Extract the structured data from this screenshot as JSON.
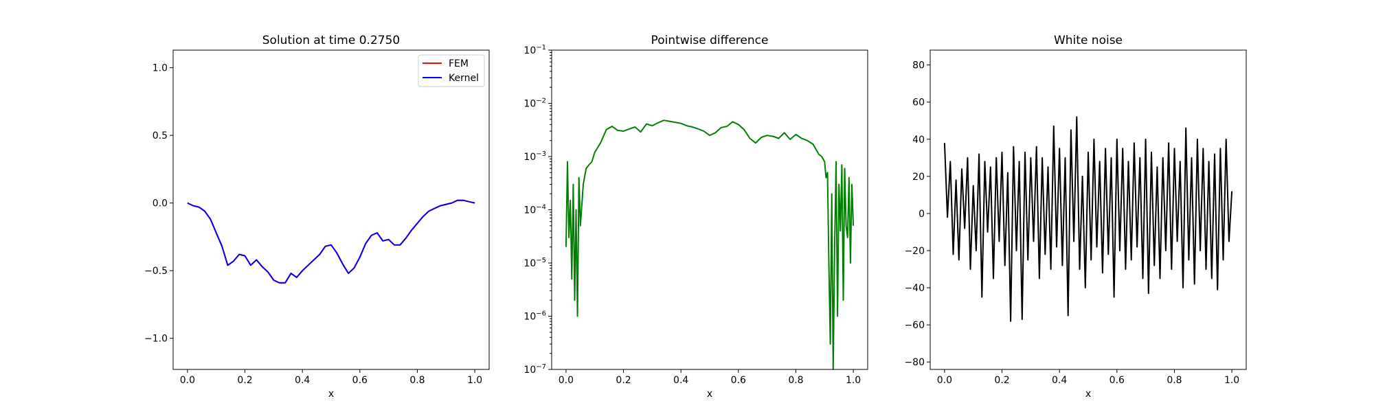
{
  "chart_data": [
    {
      "type": "line",
      "title": "Solution at time 0.2750",
      "xlabel": "x",
      "ylabel": "",
      "xlim": [
        -0.05,
        1.05
      ],
      "ylim": [
        -1.23,
        1.13
      ],
      "xticks": [
        0.0,
        0.2,
        0.4,
        0.6,
        0.8,
        1.0
      ],
      "xtick_labels": [
        "0.0",
        "0.2",
        "0.4",
        "0.6",
        "0.8",
        "1.0"
      ],
      "yticks": [
        -1.0,
        -0.5,
        0.0,
        0.5,
        1.0
      ],
      "ytick_labels": [
        "−1.0",
        "−0.5",
        "0.0",
        "0.5",
        "1.0"
      ],
      "legend": "top-right",
      "series": [
        {
          "name": "FEM",
          "color": "#ff0000",
          "x": [
            0.0,
            0.02,
            0.04,
            0.06,
            0.08,
            0.1,
            0.12,
            0.14,
            0.16,
            0.18,
            0.2,
            0.22,
            0.24,
            0.26,
            0.28,
            0.3,
            0.32,
            0.34,
            0.36,
            0.38,
            0.4,
            0.42,
            0.44,
            0.46,
            0.48,
            0.5,
            0.52,
            0.54,
            0.56,
            0.58,
            0.6,
            0.62,
            0.64,
            0.66,
            0.68,
            0.7,
            0.72,
            0.74,
            0.76,
            0.78,
            0.8,
            0.82,
            0.84,
            0.86,
            0.88,
            0.9,
            0.92,
            0.94,
            0.96,
            0.98,
            1.0
          ],
          "y": [
            0.0,
            -0.02,
            -0.03,
            -0.06,
            -0.12,
            -0.22,
            -0.32,
            -0.46,
            -0.43,
            -0.38,
            -0.39,
            -0.46,
            -0.42,
            -0.47,
            -0.51,
            -0.57,
            -0.59,
            -0.59,
            -0.52,
            -0.55,
            -0.5,
            -0.46,
            -0.42,
            -0.38,
            -0.32,
            -0.31,
            -0.37,
            -0.45,
            -0.52,
            -0.48,
            -0.4,
            -0.3,
            -0.24,
            -0.22,
            -0.28,
            -0.27,
            -0.31,
            -0.31,
            -0.26,
            -0.2,
            -0.15,
            -0.1,
            -0.06,
            -0.04,
            -0.02,
            -0.01,
            0.0,
            0.02,
            0.02,
            0.01,
            0.0
          ]
        },
        {
          "name": "Kernel",
          "color": "#0000ff",
          "x": [
            0.0,
            0.02,
            0.04,
            0.06,
            0.08,
            0.1,
            0.12,
            0.14,
            0.16,
            0.18,
            0.2,
            0.22,
            0.24,
            0.26,
            0.28,
            0.3,
            0.32,
            0.34,
            0.36,
            0.38,
            0.4,
            0.42,
            0.44,
            0.46,
            0.48,
            0.5,
            0.52,
            0.54,
            0.56,
            0.58,
            0.6,
            0.62,
            0.64,
            0.66,
            0.68,
            0.7,
            0.72,
            0.74,
            0.76,
            0.78,
            0.8,
            0.82,
            0.84,
            0.86,
            0.88,
            0.9,
            0.92,
            0.94,
            0.96,
            0.98,
            1.0
          ],
          "y": [
            0.0,
            -0.02,
            -0.03,
            -0.06,
            -0.12,
            -0.22,
            -0.32,
            -0.46,
            -0.43,
            -0.38,
            -0.39,
            -0.46,
            -0.42,
            -0.47,
            -0.51,
            -0.57,
            -0.59,
            -0.59,
            -0.52,
            -0.55,
            -0.5,
            -0.46,
            -0.42,
            -0.38,
            -0.32,
            -0.31,
            -0.37,
            -0.45,
            -0.52,
            -0.48,
            -0.4,
            -0.3,
            -0.24,
            -0.22,
            -0.28,
            -0.27,
            -0.31,
            -0.31,
            -0.26,
            -0.2,
            -0.15,
            -0.1,
            -0.06,
            -0.04,
            -0.02,
            -0.01,
            0.0,
            0.02,
            0.02,
            0.01,
            0.0
          ]
        }
      ]
    },
    {
      "type": "line",
      "title": "Pointwise difference",
      "xlabel": "x",
      "ylabel": "",
      "scale_y": "log",
      "xlim": [
        -0.05,
        1.05
      ],
      "ylim": [
        1e-07,
        0.1
      ],
      "xticks": [
        0.0,
        0.2,
        0.4,
        0.6,
        0.8,
        1.0
      ],
      "xtick_labels": [
        "0.0",
        "0.2",
        "0.4",
        "0.6",
        "0.8",
        "1.0"
      ],
      "yticks": [
        1e-07,
        1e-06,
        1e-05,
        0.0001,
        0.001,
        0.01,
        0.1
      ],
      "ytick_labels": [
        {
          "base": "10",
          "exp": "−7"
        },
        {
          "base": "10",
          "exp": "−6"
        },
        {
          "base": "10",
          "exp": "−5"
        },
        {
          "base": "10",
          "exp": "−4"
        },
        {
          "base": "10",
          "exp": "−3"
        },
        {
          "base": "10",
          "exp": "−2"
        },
        {
          "base": "10",
          "exp": "−1"
        }
      ],
      "series": [
        {
          "color": "#008000",
          "x": [
            0.0,
            0.005,
            0.01,
            0.015,
            0.02,
            0.025,
            0.03,
            0.035,
            0.04,
            0.045,
            0.05,
            0.06,
            0.07,
            0.08,
            0.09,
            0.1,
            0.12,
            0.14,
            0.16,
            0.18,
            0.2,
            0.22,
            0.24,
            0.26,
            0.28,
            0.3,
            0.32,
            0.34,
            0.36,
            0.38,
            0.4,
            0.42,
            0.44,
            0.46,
            0.48,
            0.5,
            0.52,
            0.54,
            0.56,
            0.58,
            0.6,
            0.62,
            0.64,
            0.66,
            0.68,
            0.7,
            0.72,
            0.74,
            0.76,
            0.78,
            0.8,
            0.82,
            0.84,
            0.86,
            0.88,
            0.89,
            0.9,
            0.905,
            0.91,
            0.915,
            0.92,
            0.925,
            0.93,
            0.935,
            0.94,
            0.945,
            0.95,
            0.955,
            0.96,
            0.965,
            0.97,
            0.975,
            0.98,
            0.985,
            0.99,
            0.995,
            1.0
          ],
          "y": [
            2e-05,
            0.0008,
            3e-05,
            0.00015,
            5e-06,
            0.0003,
            2e-06,
            0.0001,
            1e-06,
            0.0004,
            5e-05,
            0.0003,
            0.0006,
            0.0007,
            0.0008,
            0.0012,
            0.0018,
            0.0032,
            0.0037,
            0.0031,
            0.003,
            0.0033,
            0.0036,
            0.0029,
            0.0041,
            0.0038,
            0.0043,
            0.0048,
            0.0046,
            0.0044,
            0.0042,
            0.0038,
            0.0036,
            0.0033,
            0.003,
            0.0025,
            0.0028,
            0.0035,
            0.0037,
            0.0045,
            0.004,
            0.0032,
            0.0022,
            0.0018,
            0.0023,
            0.0025,
            0.0024,
            0.0022,
            0.0028,
            0.0021,
            0.0026,
            0.0022,
            0.002,
            0.0017,
            0.0011,
            0.001,
            0.0008,
            0.0004,
            0.0005,
            1e-05,
            3e-07,
            0.0002,
            1e-07,
            2e-05,
            0.0008,
            1e-06,
            0.0003,
            4e-05,
            0.0007,
            2e-06,
            0.0006,
            5e-05,
            3e-05,
            0.0004,
            1e-05,
            0.0003,
            5e-05
          ]
        }
      ]
    },
    {
      "type": "line",
      "title": "White noise",
      "xlabel": "x",
      "ylabel": "",
      "xlim": [
        -0.05,
        1.05
      ],
      "ylim": [
        -84,
        88
      ],
      "xticks": [
        0.0,
        0.2,
        0.4,
        0.6,
        0.8,
        1.0
      ],
      "xtick_labels": [
        "0.0",
        "0.2",
        "0.4",
        "0.6",
        "0.8",
        "1.0"
      ],
      "yticks": [
        -80,
        -60,
        -40,
        -20,
        0,
        20,
        40,
        60,
        80
      ],
      "ytick_labels": [
        "−80",
        "−60",
        "−40",
        "−20",
        "0",
        "20",
        "40",
        "60",
        "80"
      ],
      "series": [
        {
          "color": "#000000",
          "x": [
            0.0,
            0.01,
            0.02,
            0.03,
            0.04,
            0.05,
            0.06,
            0.07,
            0.08,
            0.09,
            0.1,
            0.11,
            0.12,
            0.13,
            0.14,
            0.15,
            0.16,
            0.17,
            0.18,
            0.19,
            0.2,
            0.21,
            0.22,
            0.23,
            0.24,
            0.25,
            0.26,
            0.27,
            0.28,
            0.29,
            0.3,
            0.31,
            0.32,
            0.33,
            0.34,
            0.35,
            0.36,
            0.37,
            0.38,
            0.39,
            0.4,
            0.41,
            0.42,
            0.43,
            0.44,
            0.45,
            0.46,
            0.47,
            0.48,
            0.49,
            0.5,
            0.51,
            0.52,
            0.53,
            0.54,
            0.55,
            0.56,
            0.57,
            0.58,
            0.59,
            0.6,
            0.61,
            0.62,
            0.63,
            0.64,
            0.65,
            0.66,
            0.67,
            0.68,
            0.69,
            0.7,
            0.71,
            0.72,
            0.73,
            0.74,
            0.75,
            0.76,
            0.77,
            0.78,
            0.79,
            0.8,
            0.81,
            0.82,
            0.83,
            0.84,
            0.85,
            0.86,
            0.87,
            0.88,
            0.89,
            0.9,
            0.91,
            0.92,
            0.93,
            0.94,
            0.95,
            0.96,
            0.97,
            0.98,
            0.99,
            1.0
          ],
          "y": [
            38,
            -2,
            28,
            -22,
            18,
            -25,
            24,
            -8,
            30,
            -30,
            15,
            -20,
            32,
            -45,
            28,
            -10,
            25,
            -35,
            30,
            -15,
            33,
            -28,
            22,
            -58,
            36,
            -20,
            28,
            -57,
            33,
            -25,
            30,
            -15,
            36,
            -35,
            30,
            -22,
            25,
            -30,
            47,
            -18,
            35,
            -28,
            30,
            -55,
            45,
            -15,
            52,
            -30,
            20,
            -40,
            33,
            -25,
            40,
            -18,
            28,
            -32,
            35,
            -22,
            30,
            -45,
            40,
            -20,
            35,
            -30,
            28,
            -25,
            38,
            -18,
            30,
            -35,
            40,
            -43,
            33,
            -28,
            25,
            -35,
            30,
            -20,
            38,
            -30,
            35,
            -15,
            28,
            -40,
            46,
            -25,
            30,
            -38,
            40,
            -20,
            35,
            -30,
            28,
            -35,
            32,
            -41,
            35,
            -25,
            40,
            -15,
            12
          ]
        }
      ]
    }
  ]
}
